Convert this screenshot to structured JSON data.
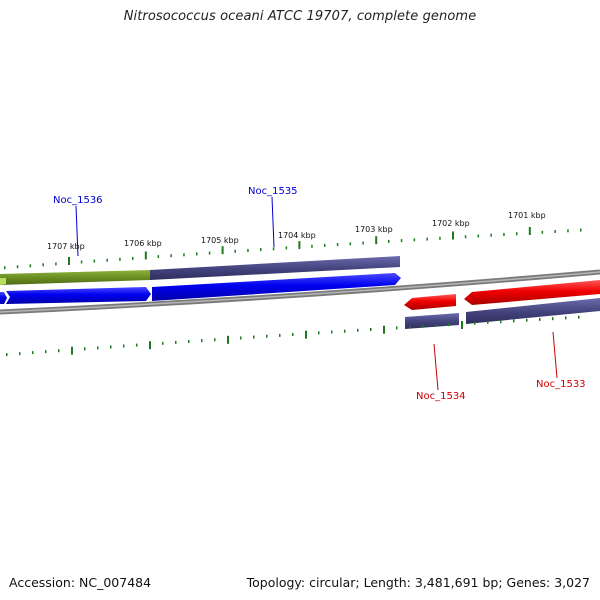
{
  "title": "Nitrosococcus oceani ATCC 19707, complete genome",
  "footer": {
    "accession": "Accession: NC_007484",
    "summary": "Topology: circular; Length: 3,481,691 bp; Genes: 3,027"
  },
  "ticks": [
    "1707 kbp",
    "1706 kbp",
    "1705 kbp",
    "1704 kbp",
    "1703 kbp",
    "1702 kbp",
    "1701 kbp"
  ],
  "genes": [
    {
      "label": "Noc_1536",
      "color": "#0000cc"
    },
    {
      "label": "Noc_1535",
      "color": "#0000cc"
    },
    {
      "label": "Noc_1534",
      "color": "#cc0000"
    },
    {
      "label": "Noc_1533",
      "color": "#cc0000"
    }
  ],
  "colors": {
    "forward_cds": "#0000ff",
    "reverse_cds": "#ff0000",
    "cog_purple": "#4b4b8f",
    "cog_green": "#6b8e23",
    "backbone": "#808080",
    "tick": "#1e7a1e"
  }
}
